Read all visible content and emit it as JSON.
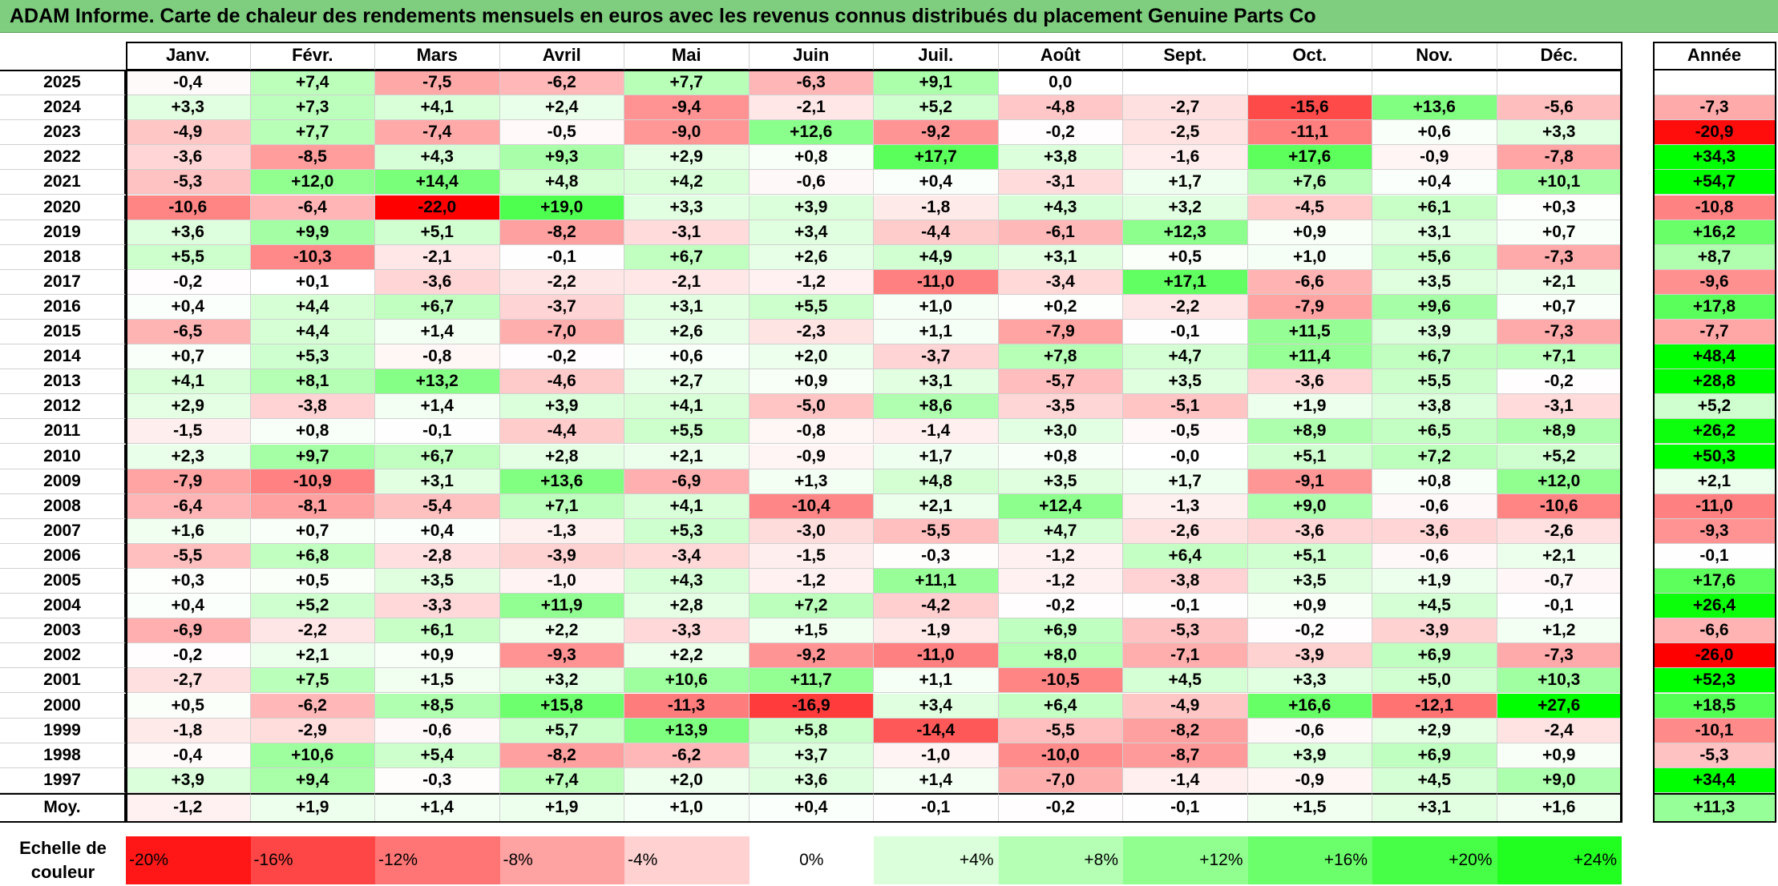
{
  "title": "ADAM Informe. Carte de chaleur des rendements mensuels en euros avec les revenus connus distribués du placement Genuine Parts Co",
  "chart_data": {
    "type": "heatmap",
    "columns": [
      "Janv.",
      "Févr.",
      "Mars",
      "Avril",
      "Mai",
      "Juin",
      "Juil.",
      "Août",
      "Sept.",
      "Oct.",
      "Nov.",
      "Déc."
    ],
    "year_header": "Année",
    "rows": [
      {
        "label": "2025",
        "values": [
          "-0,4",
          "+7,4",
          "-7,5",
          "-6,2",
          "+7,7",
          "-6,3",
          "+9,1",
          "0,0",
          "",
          "",
          "",
          ""
        ],
        "year": ""
      },
      {
        "label": "2024",
        "values": [
          "+3,3",
          "+7,3",
          "+4,1",
          "+2,4",
          "-9,4",
          "-2,1",
          "+5,2",
          "-4,8",
          "-2,7",
          "-15,6",
          "+13,6",
          "-5,6"
        ],
        "year": "-7,3"
      },
      {
        "label": "2023",
        "values": [
          "-4,9",
          "+7,7",
          "-7,4",
          "-0,5",
          "-9,0",
          "+12,6",
          "-9,2",
          "-0,2",
          "-2,5",
          "-11,1",
          "+0,6",
          "+3,3"
        ],
        "year": "-20,9"
      },
      {
        "label": "2022",
        "values": [
          "-3,6",
          "-8,5",
          "+4,3",
          "+9,3",
          "+2,9",
          "+0,8",
          "+17,7",
          "+3,8",
          "-1,6",
          "+17,6",
          "-0,9",
          "-7,8"
        ],
        "year": "+34,3"
      },
      {
        "label": "2021",
        "values": [
          "-5,3",
          "+12,0",
          "+14,4",
          "+4,8",
          "+4,2",
          "-0,6",
          "+0,4",
          "-3,1",
          "+1,7",
          "+7,6",
          "+0,4",
          "+10,1"
        ],
        "year": "+54,7"
      },
      {
        "label": "2020",
        "values": [
          "-10,6",
          "-6,4",
          "-22,0",
          "+19,0",
          "+3,3",
          "+3,9",
          "-1,8",
          "+4,3",
          "+3,2",
          "-4,5",
          "+6,1",
          "+0,3"
        ],
        "year": "-10,8"
      },
      {
        "label": "2019",
        "values": [
          "+3,6",
          "+9,9",
          "+5,1",
          "-8,2",
          "-3,1",
          "+3,4",
          "-4,4",
          "-6,1",
          "+12,3",
          "+0,9",
          "+3,1",
          "+0,7"
        ],
        "year": "+16,2"
      },
      {
        "label": "2018",
        "values": [
          "+5,5",
          "-10,3",
          "-2,1",
          "-0,1",
          "+6,7",
          "+2,6",
          "+4,9",
          "+3,1",
          "+0,5",
          "+1,0",
          "+5,6",
          "-7,3"
        ],
        "year": "+8,7"
      },
      {
        "label": "2017",
        "values": [
          "-0,2",
          "+0,1",
          "-3,6",
          "-2,2",
          "-2,1",
          "-1,2",
          "-11,0",
          "-3,4",
          "+17,1",
          "-6,6",
          "+3,5",
          "+2,1"
        ],
        "year": "-9,6"
      },
      {
        "label": "2016",
        "values": [
          "+0,4",
          "+4,4",
          "+6,7",
          "-3,7",
          "+3,1",
          "+5,5",
          "+1,0",
          "+0,2",
          "-2,2",
          "-7,9",
          "+9,6",
          "+0,7"
        ],
        "year": "+17,8"
      },
      {
        "label": "2015",
        "values": [
          "-6,5",
          "+4,4",
          "+1,4",
          "-7,0",
          "+2,6",
          "-2,3",
          "+1,1",
          "-7,9",
          "-0,1",
          "+11,5",
          "+3,9",
          "-7,3"
        ],
        "year": "-7,7"
      },
      {
        "label": "2014",
        "values": [
          "+0,7",
          "+5,3",
          "-0,8",
          "-0,2",
          "+0,6",
          "+2,0",
          "-3,7",
          "+7,8",
          "+4,7",
          "+11,4",
          "+6,7",
          "+7,1"
        ],
        "year": "+48,4"
      },
      {
        "label": "2013",
        "values": [
          "+4,1",
          "+8,1",
          "+13,2",
          "-4,6",
          "+2,7",
          "+0,9",
          "+3,1",
          "-5,7",
          "+3,5",
          "-3,6",
          "+5,5",
          "-0,2"
        ],
        "year": "+28,8"
      },
      {
        "label": "2012",
        "values": [
          "+2,9",
          "-3,8",
          "+1,4",
          "+3,9",
          "+4,1",
          "-5,0",
          "+8,6",
          "-3,5",
          "-5,1",
          "+1,9",
          "+3,8",
          "-3,1"
        ],
        "year": "+5,2"
      },
      {
        "label": "2011",
        "values": [
          "-1,5",
          "+0,8",
          "-0,1",
          "-4,4",
          "+5,5",
          "-0,8",
          "-1,4",
          "+3,0",
          "-0,5",
          "+8,9",
          "+6,5",
          "+8,9"
        ],
        "year": "+26,2"
      },
      {
        "label": "2010",
        "values": [
          "+2,3",
          "+9,7",
          "+6,7",
          "+2,8",
          "+2,1",
          "-0,9",
          "+1,7",
          "+0,8",
          "-0,0",
          "+5,1",
          "+7,2",
          "+5,2"
        ],
        "year": "+50,3"
      },
      {
        "label": "2009",
        "values": [
          "-7,9",
          "-10,9",
          "+3,1",
          "+13,6",
          "-6,9",
          "+1,3",
          "+4,8",
          "+3,5",
          "+1,7",
          "-9,1",
          "+0,8",
          "+12,0"
        ],
        "year": "+2,1"
      },
      {
        "label": "2008",
        "values": [
          "-6,4",
          "-8,1",
          "-5,4",
          "+7,1",
          "+4,1",
          "-10,4",
          "+2,1",
          "+12,4",
          "-1,3",
          "+9,0",
          "-0,6",
          "-10,6"
        ],
        "year": "-11,0"
      },
      {
        "label": "2007",
        "values": [
          "+1,6",
          "+0,7",
          "+0,4",
          "-1,3",
          "+5,3",
          "-3,0",
          "-5,5",
          "+4,7",
          "-2,6",
          "-3,6",
          "-3,6",
          "-2,6"
        ],
        "year": "-9,3"
      },
      {
        "label": "2006",
        "values": [
          "-5,5",
          "+6,8",
          "-2,8",
          "-3,9",
          "-3,4",
          "-1,5",
          "-0,3",
          "-1,2",
          "+6,4",
          "+5,1",
          "-0,6",
          "+2,1"
        ],
        "year": "-0,1"
      },
      {
        "label": "2005",
        "values": [
          "+0,3",
          "+0,5",
          "+3,5",
          "-1,0",
          "+4,3",
          "-1,2",
          "+11,1",
          "-1,2",
          "-3,8",
          "+3,5",
          "+1,9",
          "-0,7"
        ],
        "year": "+17,6"
      },
      {
        "label": "2004",
        "values": [
          "+0,4",
          "+5,2",
          "-3,3",
          "+11,9",
          "+2,8",
          "+7,2",
          "-4,2",
          "-0,2",
          "-0,1",
          "+0,9",
          "+4,5",
          "-0,1"
        ],
        "year": "+26,4"
      },
      {
        "label": "2003",
        "values": [
          "-6,9",
          "-2,2",
          "+6,1",
          "+2,2",
          "-3,3",
          "+1,5",
          "-1,9",
          "+6,9",
          "-5,3",
          "-0,2",
          "-3,9",
          "+1,2"
        ],
        "year": "-6,6"
      },
      {
        "label": "2002",
        "values": [
          "-0,2",
          "+2,1",
          "+0,9",
          "-9,3",
          "+2,2",
          "-9,2",
          "-11,0",
          "+8,0",
          "-7,1",
          "-3,9",
          "+6,9",
          "-7,3"
        ],
        "year": "-26,0"
      },
      {
        "label": "2001",
        "values": [
          "-2,7",
          "+7,5",
          "+1,5",
          "+3,2",
          "+10,6",
          "+11,7",
          "+1,1",
          "-10,5",
          "+4,5",
          "+3,3",
          "+5,0",
          "+10,3"
        ],
        "year": "+52,3"
      },
      {
        "label": "2000",
        "values": [
          "+0,5",
          "-6,2",
          "+8,5",
          "+15,8",
          "-11,3",
          "-16,9",
          "+3,4",
          "+6,4",
          "-4,9",
          "+16,6",
          "-12,1",
          "+27,6"
        ],
        "year": "+18,5"
      },
      {
        "label": "1999",
        "values": [
          "-1,8",
          "-2,9",
          "-0,6",
          "+5,7",
          "+13,9",
          "+5,8",
          "-14,4",
          "-5,5",
          "-8,2",
          "-0,6",
          "+2,9",
          "-2,4"
        ],
        "year": "-10,1"
      },
      {
        "label": "1998",
        "values": [
          "-0,4",
          "+10,6",
          "+5,4",
          "-8,2",
          "-6,2",
          "+3,7",
          "-1,0",
          "-10,0",
          "-8,7",
          "+3,9",
          "+6,9",
          "+0,9"
        ],
        "year": "-5,3"
      },
      {
        "label": "1997",
        "values": [
          "+3,9",
          "+9,4",
          "-0,3",
          "+7,4",
          "+2,0",
          "+3,6",
          "+1,4",
          "-7,0",
          "-1,4",
          "-0,9",
          "+4,5",
          "+9,0"
        ],
        "year": "+34,4"
      }
    ],
    "average": {
      "label": "Moy.",
      "values": [
        "-1,2",
        "+1,9",
        "+1,4",
        "+1,9",
        "+1,0",
        "+0,4",
        "-0,1",
        "-0,2",
        "-0,1",
        "+1,5",
        "+3,1",
        "+1,6"
      ],
      "year": "+11,3"
    },
    "scale": {
      "label": "Echelle de couleur",
      "steps": [
        {
          "text": "-20%",
          "value": -20
        },
        {
          "text": "-16%",
          "value": -16
        },
        {
          "text": "-12%",
          "value": -12
        },
        {
          "text": "-8%",
          "value": -8
        },
        {
          "text": "-4%",
          "value": -4
        },
        {
          "text": "0%",
          "value": 0
        },
        {
          "text": "+4%",
          "value": 4
        },
        {
          "text": "+8%",
          "value": 8
        },
        {
          "text": "+12%",
          "value": 12
        },
        {
          "text": "+16%",
          "value": 16
        },
        {
          "text": "+20%",
          "value": 20
        },
        {
          "text": "+24%",
          "value": 24
        }
      ]
    },
    "color_range": {
      "min": -22,
      "max": 27.6
    },
    "colors": {
      "negative": "#ff0000",
      "neutral": "#ffffff",
      "positive": "#00ff00",
      "title_bg": "#7fcd7f"
    }
  }
}
